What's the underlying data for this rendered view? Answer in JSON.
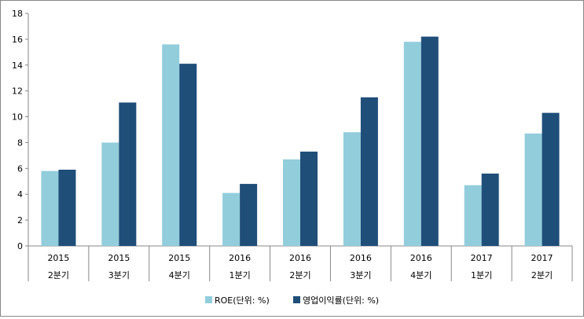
{
  "chart_data": {
    "type": "bar",
    "categories": [
      [
        "2015",
        "2분기"
      ],
      [
        "2015",
        "3분기"
      ],
      [
        "2015",
        "4분기"
      ],
      [
        "2016",
        "1분기"
      ],
      [
        "2016",
        "2분기"
      ],
      [
        "2016",
        "3분기"
      ],
      [
        "2016",
        "4분기"
      ],
      [
        "2017",
        "1분기"
      ],
      [
        "2017",
        "2분기"
      ]
    ],
    "series": [
      {
        "name": "ROE(단위: %)",
        "color": "#92cddc",
        "values": [
          5.8,
          8.0,
          15.6,
          4.1,
          6.7,
          8.8,
          15.8,
          4.7,
          8.7
        ]
      },
      {
        "name": "영업이익률(단위: %)",
        "color": "#1f4e79",
        "values": [
          5.9,
          11.1,
          14.1,
          4.8,
          7.3,
          11.5,
          16.2,
          5.6,
          10.3
        ]
      }
    ],
    "ylim": [
      0,
      18
    ],
    "yticks": [
      "0",
      "2",
      "4",
      "6",
      "8",
      "10",
      "12",
      "14",
      "16",
      "18"
    ],
    "legend": "bottom",
    "grid": false
  }
}
